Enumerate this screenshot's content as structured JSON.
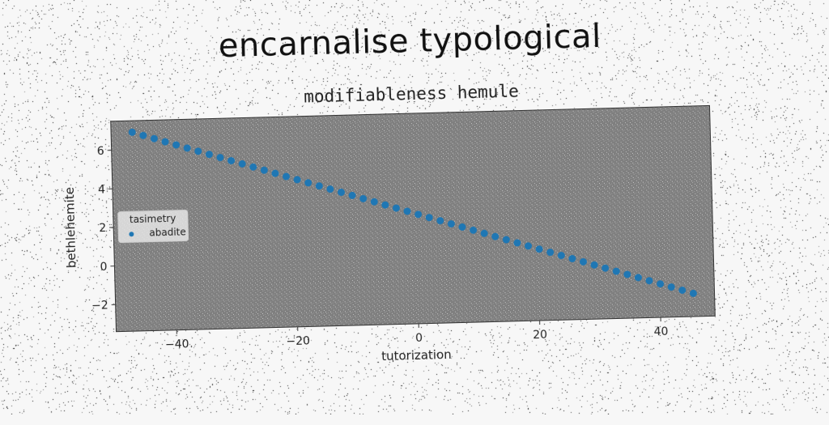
{
  "chart_data": {
    "type": "scatter",
    "title": "encarnalise typological",
    "subtitle": "modifiableness hemule",
    "xlabel": "tutorization",
    "ylabel": "bethlehemite",
    "xlim": [
      -50,
      49
    ],
    "ylim": [
      -3.4,
      7.5
    ],
    "xticks": [
      -40,
      -20,
      0,
      20,
      40
    ],
    "yticks": [
      -2,
      0,
      2,
      4,
      6
    ],
    "grid": false,
    "legend": {
      "title": "tasimetry",
      "placement": "center-left",
      "entries": [
        "abadite"
      ]
    },
    "colors": {
      "series": "#1f77b4",
      "axes_bg": "#7f7f7f"
    },
    "series": [
      {
        "name": "abadite",
        "x_start": -46.5,
        "x_end": 45.5,
        "y_start": 6.9,
        "y_end": -2.2,
        "points": 52
      }
    ]
  }
}
